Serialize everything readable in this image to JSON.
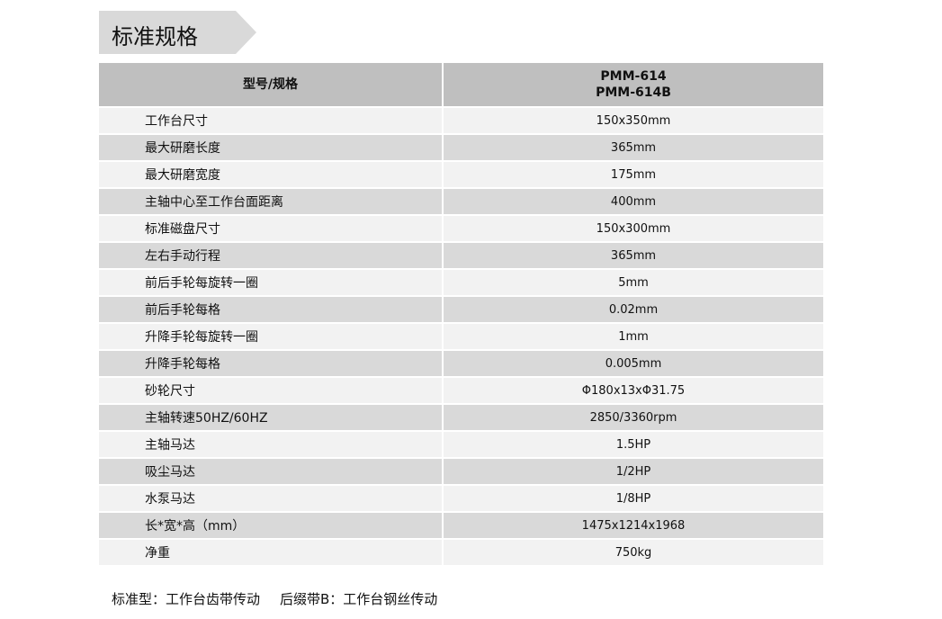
{
  "title": "标准规格",
  "table": {
    "header": {
      "label": "型号/规格",
      "models": [
        "PMM-614",
        "PMM-614B"
      ]
    },
    "rows": [
      {
        "k": "工作台尺寸",
        "v": "150x350mm"
      },
      {
        "k": "最大研磨长度",
        "v": "365mm"
      },
      {
        "k": "最大研磨宽度",
        "v": "175mm"
      },
      {
        "k": "主轴中心至工作台面距离",
        "v": "400mm"
      },
      {
        "k": "标准磁盘尺寸",
        "v": "150x300mm"
      },
      {
        "k": "左右手动行程",
        "v": "365mm"
      },
      {
        "k": "前后手轮每旋转一圈",
        "v": "5mm"
      },
      {
        "k": "前后手轮每格",
        "v": "0.02mm"
      },
      {
        "k": "升降手轮每旋转一圈",
        "v": "1mm"
      },
      {
        "k": "升降手轮每格",
        "v": "0.005mm"
      },
      {
        "k": "砂轮尺寸",
        "v": "Φ180x13xΦ31.75"
      },
      {
        "k": "主轴转速50HZ/60HZ",
        "v": "2850/3360rpm"
      },
      {
        "k": "主轴马达",
        "v": "1.5HP"
      },
      {
        "k": "吸尘马达",
        "v": "1/2HP"
      },
      {
        "k": "水泵马达",
        "v": "1/8HP"
      },
      {
        "k": "长*宽*高（mm）",
        "v": "1475x1214x1968"
      },
      {
        "k": "净重",
        "v": "750kg"
      }
    ]
  },
  "notes": [
    "标准型：工作台齿带传动",
    "后缀带B：工作台钢丝传动"
  ]
}
